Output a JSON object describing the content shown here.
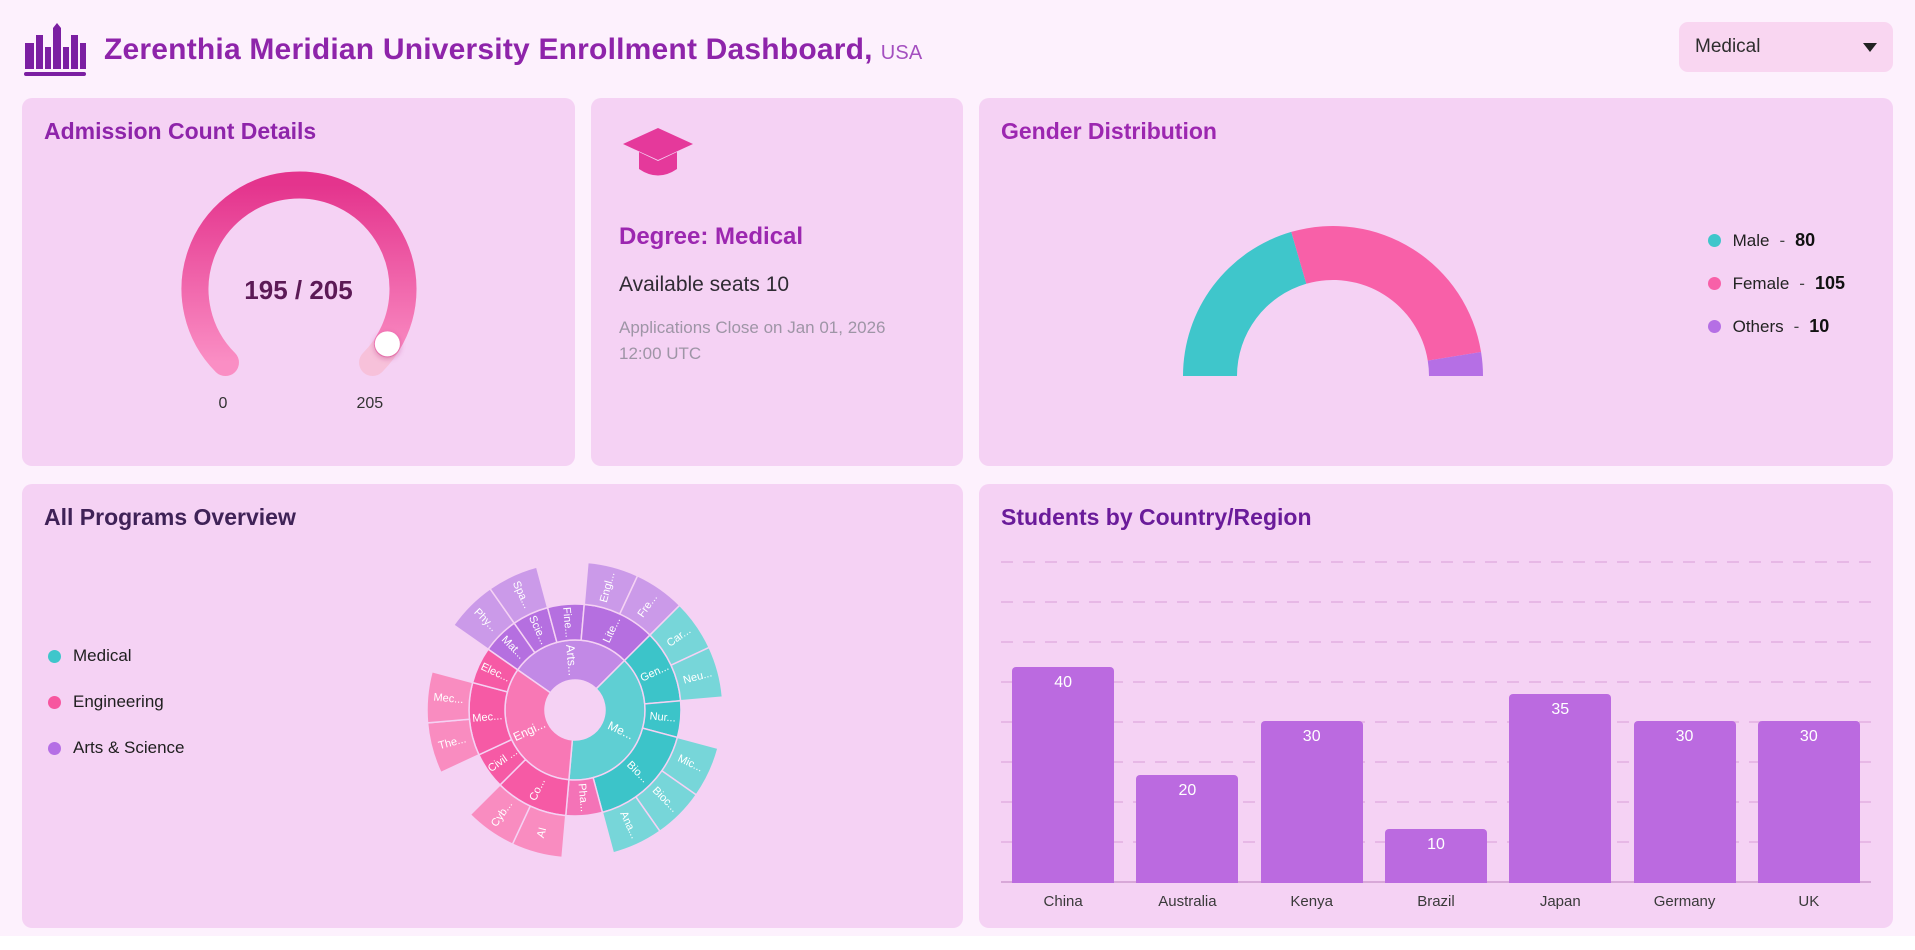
{
  "header": {
    "title": "Zerenthia Meridian University Enrollment Dashboard,",
    "region": "USA",
    "dropdown_value": "Medical"
  },
  "cards": {
    "degree": {
      "title": "Degree: Medical",
      "seats": "Available seats 10",
      "closing": "Applications Close on Jan 01, 2026 12:00 UTC"
    }
  },
  "chart_data": [
    {
      "id": "admission-gauge",
      "type": "gauge",
      "title": "Admission Count Details",
      "value": 195,
      "min": 0,
      "max": 205,
      "center_label": "195 / 205",
      "min_label": "0",
      "max_label": "205",
      "colors": {
        "track": "#f7c1da",
        "grad_start": "#e4348d",
        "grad_end": "#fa8ec4",
        "handle": "#ffffff"
      }
    },
    {
      "id": "gender-donut",
      "type": "donut",
      "subtype": "semicircle",
      "title": "Gender Distribution",
      "legend_position": "right",
      "items": [
        {
          "label": "Male",
          "value": 80,
          "color": "#3fc6cb"
        },
        {
          "label": "Female",
          "value": 105,
          "color": "#f860a8"
        },
        {
          "label": "Others",
          "value": 10,
          "color": "#b56fe5"
        }
      ]
    },
    {
      "id": "programs-sunburst",
      "type": "sunburst",
      "title": "All Programs Overview",
      "legend": [
        {
          "label": "Medical",
          "color": "#3fc6cb"
        },
        {
          "label": "Engineering",
          "color": "#f7569f"
        },
        {
          "label": "Arts & Science",
          "color": "#b56fe5"
        }
      ],
      "start_angle": 305,
      "tree": [
        {
          "label": "Arts...",
          "color": "#b56fe0",
          "children": [
            {
              "label": "Mat...",
              "children": [
                {
                  "label": "Phy..."
                }
              ]
            },
            {
              "label": "Scie...",
              "children": [
                {
                  "label": "Spa..."
                }
              ]
            },
            {
              "label": "Fine...",
              "children": []
            },
            {
              "label": "Lite...",
              "children": [
                {
                  "label": "Engl..."
                },
                {
                  "label": "Fre..."
                }
              ]
            }
          ]
        },
        {
          "label": "Me...",
          "color": "#3cc4c9",
          "children": [
            {
              "label": "Gen...",
              "children": [
                {
                  "label": "Car..."
                },
                {
                  "label": "Neu..."
                }
              ]
            },
            {
              "label": "Nur...",
              "children": []
            },
            {
              "label": "Bio...",
              "children": [
                {
                  "label": "Mic..."
                },
                {
                  "label": "Bioc..."
                },
                {
                  "label": "Ana..."
                }
              ]
            },
            {
              "label": "Pha...",
              "color": "#f473b7",
              "children": []
            }
          ]
        },
        {
          "label": "Engi...",
          "color": "#f65aa5",
          "children": [
            {
              "label": "Co...",
              "children": [
                {
                  "label": "AI"
                },
                {
                  "label": "Cyb..."
                }
              ]
            },
            {
              "label": "Civil ...",
              "children": []
            },
            {
              "label": "Mec...",
              "children": [
                {
                  "label": "The..."
                },
                {
                  "label": "Mec..."
                }
              ]
            },
            {
              "label": "Elec...",
              "children": []
            }
          ]
        }
      ]
    },
    {
      "id": "country-bars",
      "type": "bar",
      "title": "Students by Country/Region",
      "categories": [
        "China",
        "Australia",
        "Kenya",
        "Brazil",
        "Japan",
        "Germany",
        "UK"
      ],
      "values": [
        40,
        20,
        30,
        10,
        35,
        30,
        30
      ],
      "bar_color": "#bb6ae0",
      "ylim": [
        0,
        60
      ],
      "grid": "dashed",
      "xlabel": "",
      "ylabel": ""
    }
  ]
}
